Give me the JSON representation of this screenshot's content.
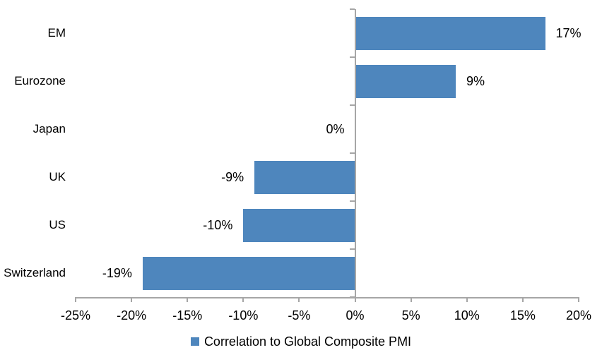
{
  "chart_data": {
    "type": "bar",
    "orientation": "horizontal",
    "title": "",
    "categories": [
      "EM",
      "Eurozone",
      "Japan",
      "UK",
      "US",
      "Switzerland"
    ],
    "values": [
      17,
      9,
      0,
      -9,
      -10,
      -19
    ],
    "value_labels": [
      "17%",
      "9%",
      "0%",
      "-9%",
      "-10%",
      "-19%"
    ],
    "xlim": [
      -25,
      20
    ],
    "x_ticks": [
      -25,
      -20,
      -15,
      -10,
      -5,
      0,
      5,
      10,
      15,
      20
    ],
    "x_tick_labels": [
      "-25%",
      "-20%",
      "-15%",
      "-10%",
      "-5%",
      "0%",
      "5%",
      "10%",
      "15%",
      "20%"
    ],
    "grid": false,
    "legend_position": "bottom-center",
    "legend_entries": [
      {
        "label": "Correlation to Global Composite PMI",
        "color": "#4E86BD"
      }
    ],
    "colors": {
      "bar": "#4E86BD",
      "axis": "#A6A6A6",
      "text": "#000000",
      "background": "#FFFFFF"
    }
  }
}
